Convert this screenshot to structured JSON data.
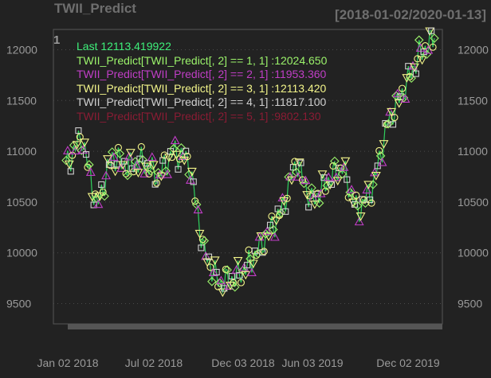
{
  "header": {
    "title": "TWII_Predict",
    "date_range": "[2018-01-02/2020-01-13]"
  },
  "panel": {
    "label": "1"
  },
  "legend": [
    {
      "text": "Last 12113.419922",
      "color": "#3ef07a"
    },
    {
      "text": "TWII_Predict[TWII_Predict[, 2] == 1, 1] :12024.650",
      "color": "#9bf36b"
    },
    {
      "text": "TWII_Predict[TWII_Predict[, 2] == 2, 1] :11953.360",
      "color": "#c03ec6"
    },
    {
      "text": "TWII_Predict[TWII_Predict[, 2] == 3, 1] :12113.420",
      "color": "#f3f58a"
    },
    {
      "text": "TWII_Predict[TWII_Predict[, 2] == 4, 1] :11817.100",
      "color": "#d0d0d0"
    },
    {
      "text": "TWII_Predict[TWII_Predict[, 2] == 5, 1] :9802.130",
      "color": "#8a1c34"
    }
  ],
  "chart_data": {
    "type": "line",
    "title": "TWII_Predict",
    "subtitle": "[2018-01-02/2020-01-13]",
    "x_tick_labels": [
      "Jan 02 2018",
      "Jul 02 2018",
      "Dec 03 2018",
      "Jun 03 2019",
      "Dec 02 2019"
    ],
    "y_ticks": [
      9500,
      10000,
      10500,
      11000,
      11500,
      12000
    ],
    "ylim": [
      9300,
      12200
    ],
    "grid": true,
    "legend_position": "top-left",
    "colors": {
      "line": "#2fd15e",
      "up": "#9bf36b",
      "down": "#c03ec6",
      "tri": "#f3f58a",
      "sq": "#d0d0d0"
    },
    "x": [
      "2018-01",
      "2018-02",
      "2018-03",
      "2018-04",
      "2018-05",
      "2018-06",
      "2018-07",
      "2018-08",
      "2018-09",
      "2018-10",
      "2018-11",
      "2018-12",
      "2019-01",
      "2019-02",
      "2019-03",
      "2019-04",
      "2019-05",
      "2019-06",
      "2019-07",
      "2019-08",
      "2019-09",
      "2019-10",
      "2019-11",
      "2019-12",
      "2020-01"
    ],
    "series": [
      {
        "name": "Last",
        "values": [
          10850,
          11150,
          10450,
          10950,
          10850,
          10900,
          10750,
          11000,
          10900,
          10000,
          9700,
          9750,
          9900,
          10150,
          10400,
          10900,
          10500,
          10700,
          10850,
          10400,
          10650,
          11300,
          11600,
          11950,
          12113.42
        ]
      }
    ]
  }
}
